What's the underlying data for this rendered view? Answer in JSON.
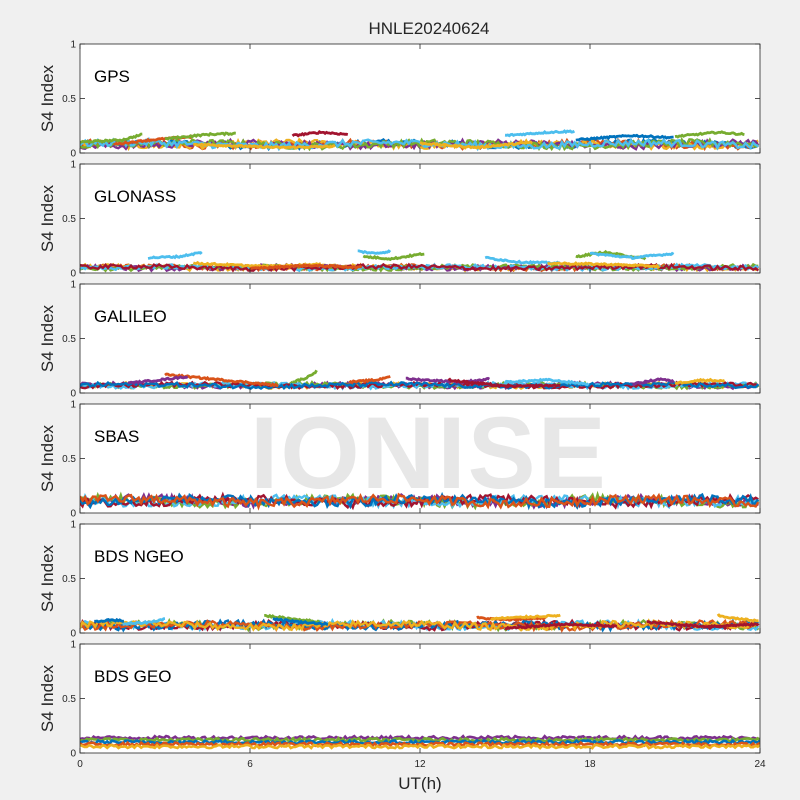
{
  "figure": {
    "title": "HNLE20240624",
    "watermark": "IONISE",
    "xlabel": "UT(h)"
  },
  "chart_data": {
    "type": "scatter",
    "title": "HNLE20240624",
    "xlabel": "UT(h)",
    "ylabel": "S4 Index",
    "xlim": [
      0,
      24
    ],
    "xticks": [
      0,
      6,
      12,
      18,
      24
    ],
    "ylim": [
      0,
      1
    ],
    "yticks": [
      0,
      0.5,
      1
    ],
    "yticklabels": [
      "0",
      "0.5",
      "1"
    ],
    "grid": false,
    "series_colors": [
      "#0072BD",
      "#D95319",
      "#EDB120",
      "#7E2F8E",
      "#77AC30",
      "#4DBEEE",
      "#A2142F"
    ],
    "panels": [
      {
        "label": "GPS",
        "ylabel": "S4 Index",
        "baseline": 0.08,
        "spread": 0.03,
        "arcs": [
          {
            "x": [
              0.0,
              1.5,
              2.2
            ],
            "y": [
              0.1,
              0.12,
              0.17
            ],
            "c": 4
          },
          {
            "x": [
              1.2,
              2.5,
              4.0
            ],
            "y": [
              0.08,
              0.12,
              0.15
            ],
            "c": 1
          },
          {
            "x": [
              3.0,
              4.5,
              5.5
            ],
            "y": [
              0.13,
              0.17,
              0.18
            ],
            "c": 4
          },
          {
            "x": [
              4.0,
              7.0,
              9.0
            ],
            "y": [
              0.08,
              0.05,
              0.06
            ],
            "c": 2
          },
          {
            "x": [
              7.5,
              8.5,
              9.5
            ],
            "y": [
              0.16,
              0.19,
              0.17
            ],
            "c": 6
          },
          {
            "x": [
              12.0,
              14.0,
              16.0
            ],
            "y": [
              0.09,
              0.05,
              0.1
            ],
            "c": 2
          },
          {
            "x": [
              15.0,
              16.5,
              17.5
            ],
            "y": [
              0.16,
              0.19,
              0.2
            ],
            "c": 5
          },
          {
            "x": [
              17.5,
              19.5,
              21.0
            ],
            "y": [
              0.12,
              0.16,
              0.14
            ],
            "c": 0
          },
          {
            "x": [
              21.0,
              22.5,
              23.5
            ],
            "y": [
              0.15,
              0.19,
              0.17
            ],
            "c": 4
          }
        ]
      },
      {
        "label": "GLONASS",
        "ylabel": "S4 Index",
        "baseline": 0.05,
        "spread": 0.02,
        "arcs": [
          {
            "x": [
              2.4,
              3.5,
              4.3
            ],
            "y": [
              0.14,
              0.15,
              0.19
            ],
            "c": 5
          },
          {
            "x": [
              9.8,
              10.4,
              11.0
            ],
            "y": [
              0.2,
              0.18,
              0.2
            ],
            "c": 5
          },
          {
            "x": [
              10.0,
              11.0,
              12.2
            ],
            "y": [
              0.15,
              0.13,
              0.18
            ],
            "c": 4
          },
          {
            "x": [
              14.3,
              15.5,
              17.0
            ],
            "y": [
              0.14,
              0.1,
              0.09
            ],
            "c": 5
          },
          {
            "x": [
              17.5,
              18.5,
              20.0
            ],
            "y": [
              0.15,
              0.19,
              0.13
            ],
            "c": 4
          },
          {
            "x": [
              18.0,
              19.5,
              21.0
            ],
            "y": [
              0.18,
              0.14,
              0.18
            ],
            "c": 5
          },
          {
            "x": [
              4.0,
              6.5,
              8.5
            ],
            "y": [
              0.09,
              0.06,
              0.08
            ],
            "c": 2
          },
          {
            "x": [
              16.5,
              18.5,
              20.5
            ],
            "y": [
              0.09,
              0.08,
              0.06
            ],
            "c": 2
          },
          {
            "x": [
              6.0,
              8.0,
              10.0
            ],
            "y": [
              0.04,
              0.07,
              0.05
            ],
            "c": 1
          }
        ]
      },
      {
        "label": "GALILEO",
        "ylabel": "S4 Index",
        "baseline": 0.07,
        "spread": 0.02,
        "arcs": [
          {
            "x": [
              3.0,
              5.0,
              7.0
            ],
            "y": [
              0.17,
              0.12,
              0.07
            ],
            "c": 1
          },
          {
            "x": [
              1.7,
              2.8,
              3.8
            ],
            "y": [
              0.09,
              0.12,
              0.15
            ],
            "c": 3
          },
          {
            "x": [
              7.5,
              8.0,
              8.4
            ],
            "y": [
              0.1,
              0.14,
              0.21
            ],
            "c": 4
          },
          {
            "x": [
              9.5,
              10.5,
              11.0
            ],
            "y": [
              0.1,
              0.12,
              0.16
            ],
            "c": 1
          },
          {
            "x": [
              11.5,
              13.5,
              14.5
            ],
            "y": [
              0.13,
              0.1,
              0.13
            ],
            "c": 3
          },
          {
            "x": [
              13.0,
              15.0,
              17.0
            ],
            "y": [
              0.12,
              0.06,
              0.07
            ],
            "c": 6
          },
          {
            "x": [
              15.0,
              16.5,
              18.0
            ],
            "y": [
              0.1,
              0.12,
              0.08
            ],
            "c": 5
          },
          {
            "x": [
              19.5,
              20.5,
              21.0
            ],
            "y": [
              0.08,
              0.13,
              0.1
            ],
            "c": 3
          },
          {
            "x": [
              21.0,
              22.0,
              22.8
            ],
            "y": [
              0.09,
              0.12,
              0.11
            ],
            "c": 2
          }
        ]
      },
      {
        "label": "SBAS",
        "ylabel": "S4 Index",
        "baseline": 0.11,
        "spread": 0.04,
        "arcs": []
      },
      {
        "label": "BDS NGEO",
        "ylabel": "S4 Index",
        "baseline": 0.07,
        "spread": 0.03,
        "arcs": [
          {
            "x": [
              0.5,
              1.0,
              1.6
            ],
            "y": [
              0.1,
              0.12,
              0.11
            ],
            "c": 0
          },
          {
            "x": [
              1.5,
              2.5,
              3.0
            ],
            "y": [
              0.08,
              0.1,
              0.13
            ],
            "c": 5
          },
          {
            "x": [
              6.5,
              7.5,
              8.5
            ],
            "y": [
              0.16,
              0.13,
              0.1
            ],
            "c": 4
          },
          {
            "x": [
              6.8,
              7.8,
              8.8
            ],
            "y": [
              0.13,
              0.1,
              0.08
            ],
            "c": 0
          },
          {
            "x": [
              14.0,
              15.0,
              16.5
            ],
            "y": [
              0.14,
              0.12,
              0.14
            ],
            "c": 1
          },
          {
            "x": [
              14.5,
              16.0,
              17.0
            ],
            "y": [
              0.13,
              0.15,
              0.16
            ],
            "c": 2
          },
          {
            "x": [
              15.0,
              17.0,
              19.0
            ],
            "y": [
              0.04,
              0.08,
              0.06
            ],
            "c": 6
          },
          {
            "x": [
              22.5,
              23.2,
              24.0
            ],
            "y": [
              0.16,
              0.13,
              0.11
            ],
            "c": 2
          },
          {
            "x": [
              20.0,
              22.0,
              24.0
            ],
            "y": [
              0.1,
              0.06,
              0.08
            ],
            "c": 6
          }
        ]
      },
      {
        "label": "BDS GEO",
        "ylabel": "S4 Index",
        "baseline": 0.09,
        "spread": 0.015,
        "bands": [
          {
            "y": 0.14,
            "c": 3
          },
          {
            "y": 0.12,
            "c": 4
          },
          {
            "y": 0.1,
            "c": 0
          },
          {
            "y": 0.08,
            "c": 1
          },
          {
            "y": 0.06,
            "c": 2
          }
        ],
        "arcs": []
      }
    ]
  }
}
